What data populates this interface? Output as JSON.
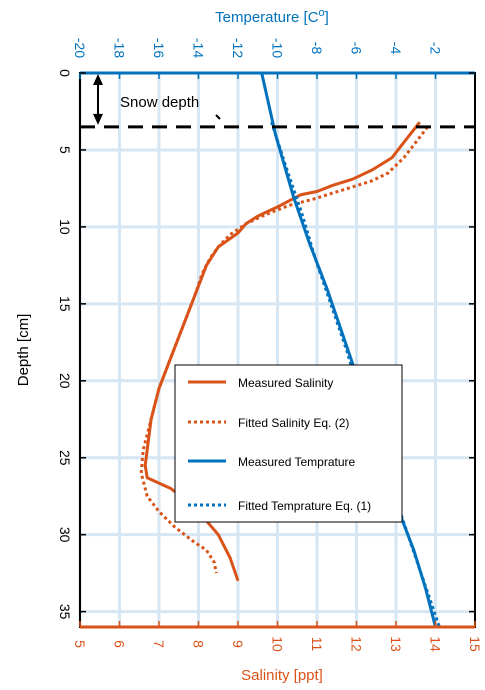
{
  "chart_data": {
    "type": "line",
    "axes": {
      "depth": {
        "label": "Depth [cm]",
        "range": [
          0,
          36
        ],
        "ticks": [
          0,
          5,
          10,
          15,
          20,
          25,
          30,
          35
        ],
        "reversed": true
      },
      "temperature": {
        "label_main": "Temperature [C",
        "label_sup": "o",
        "label_tail": "]",
        "range": [
          -20,
          0
        ],
        "ticks": [
          -20,
          -18,
          -16,
          -14,
          -12,
          -10,
          -8,
          -6,
          -4,
          -2
        ],
        "position": "top"
      },
      "salinity": {
        "label": "Salinity [ppt]",
        "range": [
          5,
          15
        ],
        "ticks": [
          5,
          6,
          7,
          8,
          9,
          10,
          11,
          12,
          13,
          14,
          15
        ],
        "position": "bottom"
      }
    },
    "grid": true,
    "colors": {
      "salinity": "#D95319",
      "temperature": "#0072BD",
      "grid": "#D6E6F2"
    },
    "series": [
      {
        "name": "Measured Salinity",
        "axis": "salinity",
        "style": "solid",
        "x": [
          13.6,
          13.2,
          12.9,
          12.4,
          11.9,
          11.4,
          11.0,
          10.6,
          10.3,
          10.0,
          9.5,
          9.2,
          9.0,
          8.5,
          8.2,
          7.9,
          7.6,
          7.3,
          7.0,
          6.8,
          6.7,
          6.65,
          6.7,
          7.3,
          7.9,
          8.5,
          8.8,
          9.0
        ],
        "y": [
          3.2,
          4.5,
          5.5,
          6.3,
          6.9,
          7.3,
          7.7,
          7.9,
          8.3,
          8.7,
          9.3,
          9.8,
          10.4,
          11.3,
          12.5,
          14.5,
          16.5,
          18.5,
          20.5,
          22.5,
          24.5,
          25.5,
          26.3,
          27.0,
          28.2,
          30.0,
          31.5,
          33.0
        ]
      },
      {
        "name": "Fitted Salinity Eq. (2)",
        "axis": "salinity",
        "style": "dotted",
        "x": [
          13.8,
          13.5,
          13.2,
          12.8,
          12.4,
          11.9,
          11.4,
          10.9,
          10.3,
          9.7,
          9.2,
          8.8,
          8.5,
          8.3,
          8.1,
          7.9,
          7.6,
          7.3,
          7.0,
          6.8,
          6.6,
          6.55,
          6.7,
          7.0,
          7.4,
          7.9,
          8.2,
          8.4,
          8.45
        ],
        "y": [
          3.5,
          4.5,
          5.5,
          6.5,
          7.0,
          7.4,
          7.8,
          8.2,
          8.6,
          9.2,
          9.8,
          10.5,
          11.3,
          12.0,
          13.0,
          14.5,
          16.5,
          18.5,
          20.5,
          22.5,
          24.5,
          26.0,
          27.5,
          28.5,
          29.5,
          30.5,
          31.0,
          31.8,
          32.5
        ]
      },
      {
        "name": "Measured Temprature",
        "axis": "temperature",
        "style": "solid",
        "x": [
          -10.8,
          -10.1,
          -9.2,
          -8.4,
          -7.5,
          -6.7,
          -5.9,
          -5.1,
          -4.3,
          -3.7,
          -3.1,
          -2.5,
          -2.0
        ],
        "y": [
          0,
          4,
          8,
          11,
          14,
          17,
          20,
          23,
          26,
          29,
          31,
          33.5,
          36
        ]
      },
      {
        "name": "Fitted Temprature Eq. (1)",
        "axis": "temperature",
        "style": "dotted",
        "x": [
          -10.3,
          -9.6,
          -8.8,
          -8.1,
          -7.3,
          -6.5,
          -5.8,
          -5.0,
          -4.2,
          -3.4,
          -2.6,
          -1.8
        ],
        "y": [
          3.2,
          6.0,
          9.0,
          12.0,
          15.0,
          18.0,
          21.0,
          24.0,
          27.0,
          30.0,
          33.0,
          36.0
        ]
      }
    ],
    "annotations": {
      "snow_depth_label": "Snow depth",
      "snow_depth_cm": 3.5
    },
    "legend_placement": "center-right"
  }
}
